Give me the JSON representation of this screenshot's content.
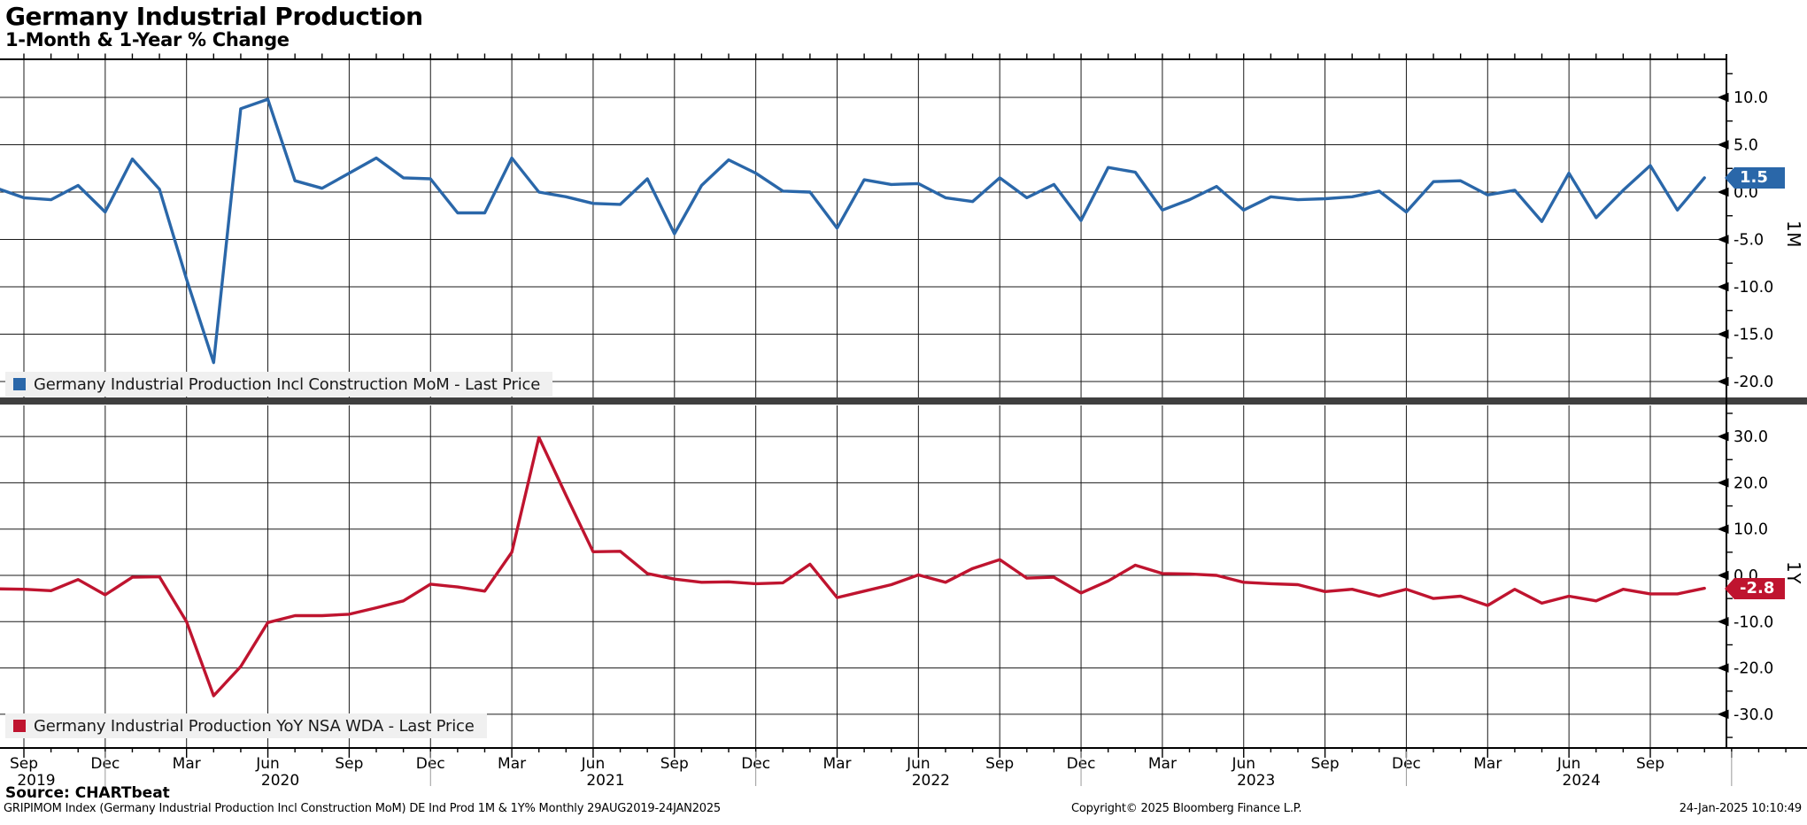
{
  "header": {
    "title": "Germany Industrial Production",
    "subtitle": "1-Month & 1-Year % Change"
  },
  "legends": {
    "mom": "Germany Industrial Production Incl Construction MoM - Last Price",
    "yoy": "Germany Industrial Production YoY NSA WDA - Last Price"
  },
  "colors": {
    "mom": "#2a67a9",
    "yoy": "#bf142f",
    "grid": "#1a1a1a",
    "axis": "#000000",
    "separator": "#3f3f3f",
    "legend_bg": "#f0f0f0",
    "year_divider": "#999999"
  },
  "panels": {
    "top": {
      "axis_label": "1M",
      "last_price_badge": "1.5",
      "tick_values": [
        10,
        5,
        0,
        -5,
        -10,
        -15,
        -20
      ],
      "tick_labels": [
        "10.0",
        "5.0",
        "0.0",
        "-5.0",
        "-10.0",
        "-15.0",
        "-20.0"
      ]
    },
    "bottom": {
      "axis_label": "1Y",
      "last_price_badge": "-2.8",
      "tick_values": [
        30,
        20,
        10,
        0,
        -10,
        -20,
        -30
      ],
      "tick_labels": [
        "30.0",
        "20.0",
        "10.0",
        "0.0",
        "-10.0",
        "-20.0",
        "-30.0"
      ]
    }
  },
  "x_axis": {
    "quarter_labels": [
      "Sep",
      "Dec",
      "Mar",
      "Jun",
      "Sep",
      "Dec",
      "Mar",
      "Jun",
      "Sep",
      "Dec",
      "Mar",
      "Jun",
      "Sep",
      "Dec",
      "Mar",
      "Jun",
      "Sep",
      "Dec",
      "Mar",
      "Jun",
      "Sep"
    ],
    "year_labels": [
      {
        "text": "2019",
        "tick_index": 0
      },
      {
        "text": "2020",
        "tick_index": 3
      },
      {
        "text": "2021",
        "tick_index": 7
      },
      {
        "text": "2022",
        "tick_index": 11
      },
      {
        "text": "2023",
        "tick_index": 15
      },
      {
        "text": "2024",
        "tick_index": 19
      }
    ]
  },
  "chart_data": {
    "type": "line",
    "grid": true,
    "x": [
      "Aug 2019",
      "Sep 2019",
      "Oct 2019",
      "Nov 2019",
      "Dec 2019",
      "Jan 2020",
      "Feb 2020",
      "Mar 2020",
      "Apr 2020",
      "May 2020",
      "Jun 2020",
      "Jul 2020",
      "Aug 2020",
      "Sep 2020",
      "Oct 2020",
      "Nov 2020",
      "Dec 2020",
      "Jan 2021",
      "Feb 2021",
      "Mar 2021",
      "Apr 2021",
      "May 2021",
      "Jun 2021",
      "Jul 2021",
      "Aug 2021",
      "Sep 2021",
      "Oct 2021",
      "Nov 2021",
      "Dec 2021",
      "Jan 2022",
      "Feb 2022",
      "Mar 2022",
      "Apr 2022",
      "May 2022",
      "Jun 2022",
      "Jul 2022",
      "Aug 2022",
      "Sep 2022",
      "Oct 2022",
      "Nov 2022",
      "Dec 2022",
      "Jan 2023",
      "Feb 2023",
      "Mar 2023",
      "Apr 2023",
      "May 2023",
      "Jun 2023",
      "Jul 2023",
      "Aug 2023",
      "Sep 2023",
      "Oct 2023",
      "Nov 2023",
      "Dec 2023",
      "Jan 2024",
      "Feb 2024",
      "Mar 2024",
      "Apr 2024",
      "May 2024",
      "Jun 2024",
      "Jul 2024",
      "Aug 2024",
      "Sep 2024",
      "Oct 2024",
      "Nov 2024"
    ],
    "series": [
      {
        "name": "Germany Industrial Production Incl Construction MoM - Last Price",
        "axis": "top",
        "color": "#2a67a9",
        "last_value": 1.5,
        "values": [
          0.4,
          -0.6,
          -0.8,
          0.7,
          -2.1,
          3.5,
          0.3,
          -9.2,
          -18.0,
          8.8,
          9.8,
          1.2,
          0.4,
          2.0,
          3.6,
          1.5,
          1.4,
          -2.2,
          -2.2,
          3.6,
          0.0,
          -0.5,
          -1.2,
          -1.3,
          1.4,
          -4.4,
          0.7,
          3.4,
          2.0,
          0.1,
          0.0,
          -3.8,
          1.3,
          0.8,
          0.9,
          -0.6,
          -1.0,
          1.5,
          -0.6,
          0.8,
          -3.0,
          2.6,
          2.1,
          -1.9,
          -0.8,
          0.6,
          -1.9,
          -0.5,
          -0.8,
          -0.7,
          -0.5,
          0.1,
          -2.1,
          1.1,
          1.2,
          -0.3,
          0.2,
          -3.1,
          2.0,
          -2.7,
          0.2,
          2.8,
          -1.9,
          1.5
        ]
      },
      {
        "name": "Germany Industrial Production YoY NSA WDA - Last Price",
        "axis": "bottom",
        "color": "#bf142f",
        "last_value": -2.8,
        "values": [
          -2.9,
          -3.0,
          -3.3,
          -0.9,
          -4.2,
          -0.4,
          -0.3,
          -10.0,
          -26.0,
          -19.7,
          -10.2,
          -8.7,
          -8.7,
          -8.4,
          -7.0,
          -5.5,
          -1.9,
          -2.5,
          -3.4,
          5.0,
          29.8,
          17.3,
          5.1,
          5.2,
          0.4,
          -0.8,
          -1.5,
          -1.4,
          -1.8,
          -1.6,
          2.4,
          -4.8,
          -3.4,
          -2.0,
          0.1,
          -1.5,
          1.5,
          3.4,
          -0.6,
          -0.4,
          -3.8,
          -1.2,
          2.2,
          0.4,
          0.3,
          0.0,
          -1.5,
          -1.8,
          -2.0,
          -3.5,
          -3.0,
          -4.5,
          -3.0,
          -5.0,
          -4.5,
          -6.5,
          -3.0,
          -6.0,
          -4.5,
          -5.5,
          -3.0,
          -4.0,
          -4.0,
          -2.8
        ]
      }
    ],
    "ylim_top": [
      -22,
      14
    ],
    "ylim_bottom": [
      -37,
      36.5
    ],
    "legend_position": "inside-left-bottom"
  },
  "footer": {
    "source": "Source: CHARTbeat",
    "description": "GRIPIMOM Index (Germany Industrial Production Incl Construction MoM) DE Ind Prod 1M & 1Y%  Monthly 29AUG2019-24JAN2025",
    "copyright": "Copyright© 2025 Bloomberg Finance L.P.",
    "datetime": "24-Jan-2025 10:10:49"
  }
}
